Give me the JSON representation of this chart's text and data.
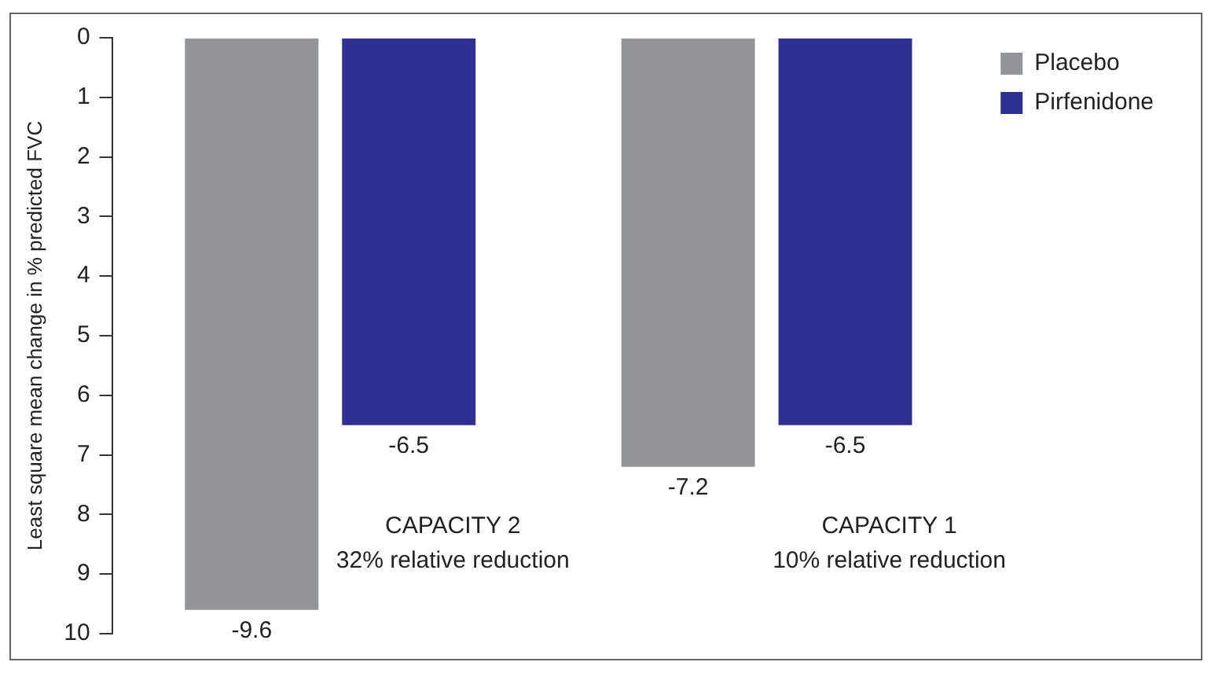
{
  "chart_data": {
    "type": "bar",
    "ylabel": "Least square mean change in % predicted FVC",
    "categories": [
      "CAPACITY 2\n32% relative reduction",
      "CAPACITY 1\n10% relative reduction"
    ],
    "series": [
      {
        "name": "Placebo",
        "color": "#939598",
        "values": [
          -9.6,
          -7.2
        ]
      },
      {
        "name": "Pirfenidone",
        "color": "#2e3192",
        "values": [
          -6.5,
          -6.5
        ]
      }
    ],
    "ylim": [
      -10,
      0
    ],
    "yticks": [
      {
        "value": 0,
        "label": "0"
      },
      {
        "value": -1,
        "label": "1"
      },
      {
        "value": -2,
        "label": "2"
      },
      {
        "value": -3,
        "label": "3"
      },
      {
        "value": -4,
        "label": "4"
      },
      {
        "value": -5,
        "label": "5"
      },
      {
        "value": -6,
        "label": "6"
      },
      {
        "value": -7,
        "label": "7"
      },
      {
        "value": -8,
        "label": "8"
      },
      {
        "value": -9,
        "label": "9"
      },
      {
        "value": -10,
        "label": "10"
      }
    ],
    "data_labels": true,
    "legend": "right",
    "grid": false
  }
}
